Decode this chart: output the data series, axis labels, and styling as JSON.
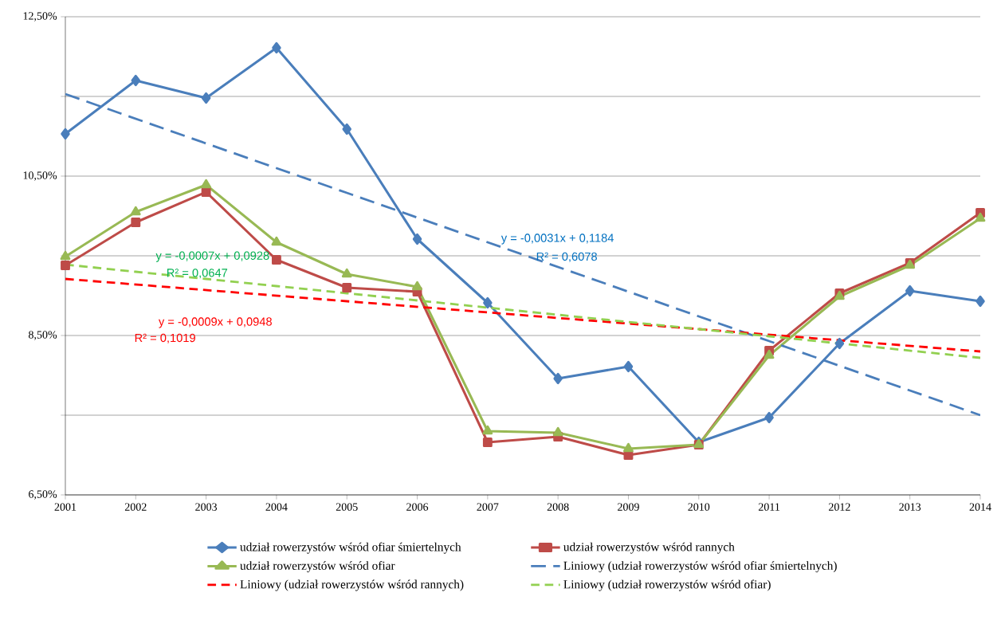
{
  "chart_data": {
    "type": "line",
    "x": [
      2001,
      2002,
      2003,
      2004,
      2005,
      2006,
      2007,
      2008,
      2009,
      2010,
      2011,
      2012,
      2013,
      2014
    ],
    "xlim": [
      2001,
      2014
    ],
    "xticks": [
      2001,
      2002,
      2003,
      2004,
      2005,
      2006,
      2007,
      2008,
      2009,
      2010,
      2011,
      2012,
      2013,
      2014
    ],
    "ylim": [
      6.5,
      12.5
    ],
    "yticks": [
      {
        "value": 6.5,
        "label": "6,50%"
      },
      {
        "value": 7.5,
        "label": null
      },
      {
        "value": 8.5,
        "label": "8,50%"
      },
      {
        "value": 9.5,
        "label": null
      },
      {
        "value": 10.5,
        "label": "10,50%"
      },
      {
        "value": 11.5,
        "label": null
      },
      {
        "value": 12.5,
        "label": "12,50%"
      }
    ],
    "grid": "y",
    "legend": "bottom",
    "series": [
      {
        "name": "udział rowerzystów wśród ofiar śmiertelnych",
        "color": "#4a7ebb",
        "marker": "diamond",
        "line_style": "solid",
        "values": [
          11.03,
          11.7,
          11.48,
          12.11,
          11.09,
          9.71,
          8.91,
          7.96,
          8.11,
          7.16,
          7.47,
          8.4,
          9.06,
          8.93
        ]
      },
      {
        "name": "udział rowerzystów wśród rannych",
        "color": "#be4b48",
        "marker": "square",
        "line_style": "solid",
        "values": [
          9.38,
          9.92,
          10.3,
          9.45,
          9.1,
          9.05,
          7.16,
          7.23,
          7.0,
          7.13,
          8.31,
          9.03,
          9.41,
          10.04
        ]
      },
      {
        "name": "udział rowerzystów wśród ofiar",
        "color": "#98b954",
        "marker": "triangle",
        "line_style": "solid",
        "values": [
          9.49,
          10.05,
          10.39,
          9.67,
          9.27,
          9.11,
          7.3,
          7.28,
          7.08,
          7.13,
          8.25,
          8.99,
          9.38,
          9.97
        ]
      },
      {
        "name": "Liniowy (udział rowerzystów wśród ofiar śmiertelnych)",
        "type": "line",
        "color": "#4a7ebb",
        "marker": "none",
        "line_style": "dashed",
        "values": [
          11.53,
          11.22,
          10.91,
          10.6,
          10.29,
          9.98,
          9.67,
          9.36,
          9.05,
          8.74,
          8.43,
          8.12,
          7.81,
          7.5
        ]
      },
      {
        "name": "Liniowy (udział rowerzystów wśród rannych)",
        "type": "line",
        "color": "#ff0000",
        "marker": "none",
        "line_style": "dashed",
        "values": [
          9.21,
          9.14,
          9.07,
          9.0,
          8.93,
          8.86,
          8.79,
          8.72,
          8.65,
          8.58,
          8.51,
          8.44,
          8.37,
          8.3
        ]
      },
      {
        "name": "Liniowy (udział rowerzystów wśród ofiar)",
        "type": "line",
        "color": "#92d050",
        "marker": "none",
        "line_style": "dashed",
        "values": [
          9.39,
          9.3,
          9.21,
          9.12,
          9.03,
          8.94,
          8.85,
          8.76,
          8.67,
          8.58,
          8.49,
          8.4,
          8.31,
          8.22
        ]
      }
    ],
    "annotations": [
      "y = -0,0031x + 0,1184",
      "R² = 0,6078",
      "y = -0,0007x + 0,0928",
      "R² = 0,0647",
      "y = -0,0009x + 0,0948",
      "R² = 0,1019"
    ]
  }
}
